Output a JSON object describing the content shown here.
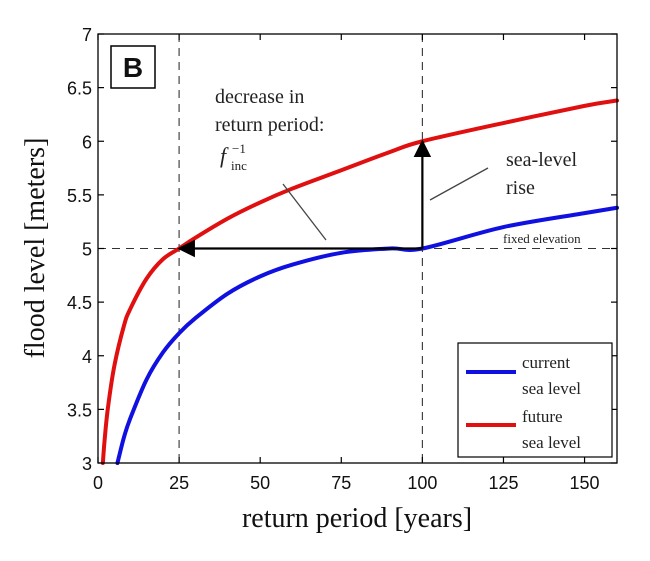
{
  "chart_data": {
    "type": "line",
    "panel_label": "B",
    "xlabel": "return period [years]",
    "ylabel": "flood level [meters]",
    "xlim": [
      0,
      160
    ],
    "ylim": [
      3,
      7
    ],
    "xticks": [
      0,
      25,
      50,
      75,
      100,
      125,
      150
    ],
    "yticks": [
      3,
      3.5,
      4,
      4.5,
      5,
      5.5,
      6,
      6.5,
      7
    ],
    "ytick_labels": [
      "3",
      "3.5",
      "4",
      "4.5",
      "5",
      "5.5",
      "6",
      "6.5",
      "7"
    ],
    "grid": false,
    "legend_position": "bottom-right",
    "series": [
      {
        "name": "current sea level",
        "legend_lines": [
          "current",
          "sea level"
        ],
        "color": "#1010e0",
        "x": [
          6,
          8,
          10,
          15,
          20,
          25,
          30,
          40,
          50,
          60,
          75,
          90,
          100,
          125,
          150,
          160
        ],
        "y": [
          3.0,
          3.24,
          3.42,
          3.78,
          4.03,
          4.21,
          4.35,
          4.58,
          4.74,
          4.85,
          4.96,
          5.0,
          5.0,
          5.2,
          5.33,
          5.38
        ]
      },
      {
        "name": "future sea level",
        "legend_lines": [
          "future",
          "sea level"
        ],
        "color": "#e01010",
        "x": [
          1.5,
          2,
          3,
          5,
          8,
          10,
          15,
          20,
          25,
          30,
          40,
          50,
          60,
          75,
          90,
          100,
          125,
          150,
          160
        ],
        "y": [
          3.0,
          3.2,
          3.5,
          3.9,
          4.28,
          4.44,
          4.72,
          4.9,
          5.0,
          5.1,
          5.28,
          5.43,
          5.56,
          5.73,
          5.9,
          6.0,
          6.17,
          6.33,
          6.38
        ]
      }
    ],
    "reference_lines": {
      "vertical": [
        25,
        100
      ],
      "horizontal": [
        5
      ]
    },
    "arrows": [
      {
        "from": [
          100,
          5
        ],
        "to": [
          25,
          5
        ]
      },
      {
        "from": [
          100,
          5
        ],
        "to": [
          100,
          6
        ]
      }
    ],
    "annotations": {
      "decrease": [
        "decrease in",
        "return period:"
      ],
      "finc": "f",
      "finc_sub": "inc",
      "finc_sup": "−1",
      "sea_level_rise": [
        "sea-level",
        "rise"
      ],
      "fixed_elevation": "fixed elevation"
    }
  }
}
